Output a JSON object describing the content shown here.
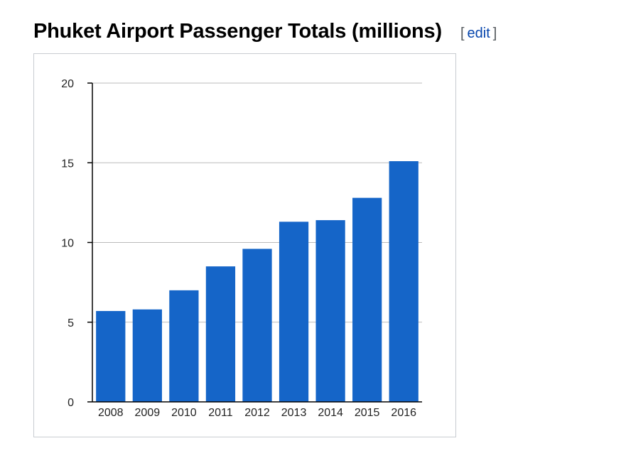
{
  "section": {
    "title": "Phuket Airport Passenger Totals (millions)",
    "edit_open": "[",
    "edit_label": "edit",
    "edit_close": "]"
  },
  "colors": {
    "bar": "#1565c8",
    "gridline": "#bbbbbb",
    "axis": "#000000",
    "link": "#0645ad"
  },
  "chart_data": {
    "type": "bar",
    "title": "Phuket Airport Passenger Totals (millions)",
    "xlabel": "",
    "ylabel": "",
    "categories": [
      "2008",
      "2009",
      "2010",
      "2011",
      "2012",
      "2013",
      "2014",
      "2015",
      "2016"
    ],
    "values": [
      5.7,
      5.8,
      7.0,
      8.5,
      9.6,
      11.3,
      11.4,
      12.8,
      15.1
    ],
    "ylim": [
      0,
      20
    ],
    "yticks": [
      "0",
      "5",
      "10",
      "15",
      "20"
    ],
    "grid": true,
    "legend": "none"
  }
}
